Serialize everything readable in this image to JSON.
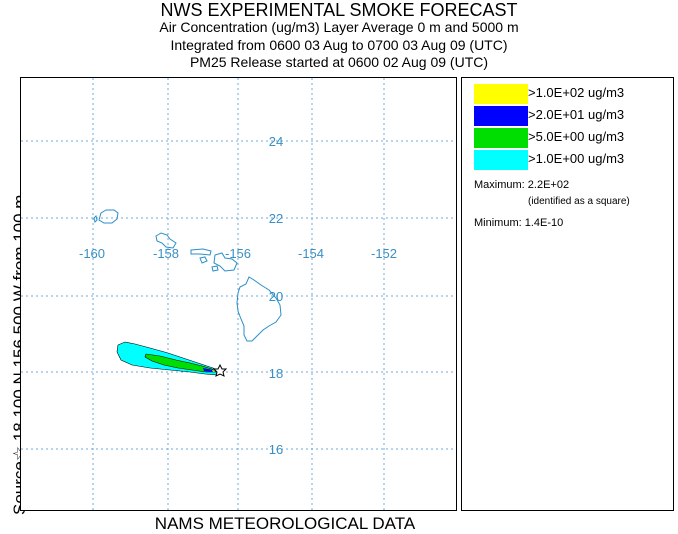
{
  "header": {
    "title": "NWS EXPERIMENTAL SMOKE FORECAST",
    "line1": "Air Concentration (ug/m3) Layer Average    0 m and  5000 m",
    "line2": "Integrated from 0600 03 Aug to 0700 03 Aug 09 (UTC)",
    "line3": "PM25 Release started at 0600 02 Aug 09 (UTC)"
  },
  "footer": "NAMS METEOROLOGICAL DATA",
  "source_label": "Source☆ 18.100  N 156.500  W    from  100 m",
  "map": {
    "lon_labels": [
      "-160",
      "-158",
      "-156",
      "-154",
      "-152"
    ],
    "lat_labels": [
      "24",
      "22",
      "20",
      "18",
      "16"
    ],
    "grid_color": "#6fa8dc",
    "label_color": "#3a8fc4",
    "coast_color": "#2a8fc8"
  },
  "legend": {
    "items": [
      {
        "label": ">1.0E+02 ug/m3",
        "color": "#ffff00"
      },
      {
        "label": ">2.0E+01 ug/m3",
        "color": "#0000ff"
      },
      {
        "label": ">5.0E+00 ug/m3",
        "color": "#00dd00"
      },
      {
        "label": ">1.0E+00 ug/m3",
        "color": "#00ffff"
      }
    ],
    "maximum": "Maximum: 2.2E+02",
    "max_note": "(identified as a square)",
    "minimum": "Minimum: 1.4E-10"
  }
}
